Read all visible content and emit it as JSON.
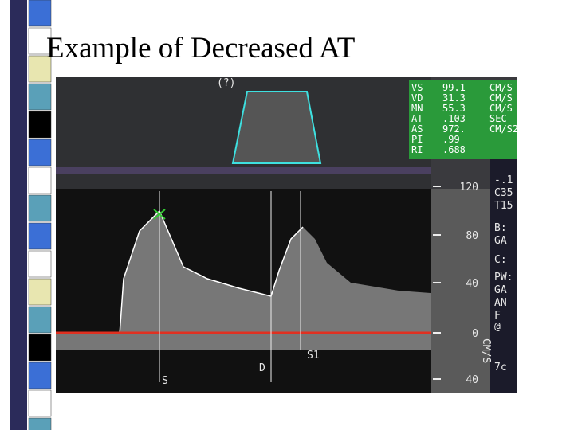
{
  "header": {
    "title": "Example of Decreased AT"
  },
  "image": {
    "top_label": "(?)",
    "measurements": [
      [
        "VS",
        "99.1",
        "CM/S"
      ],
      [
        "VD",
        "31.3",
        "CM/S"
      ],
      [
        "MN",
        "55.3",
        "CM/S"
      ],
      [
        "AT",
        ".103",
        "SEC"
      ],
      [
        "AS",
        "972.",
        "CM/S2"
      ],
      [
        "PI",
        ".99",
        ""
      ],
      [
        "RI",
        ".688",
        ""
      ]
    ],
    "scale_labels": [
      "120",
      "80",
      "40",
      "0",
      "40"
    ],
    "scale_unit": "CM/S",
    "side_panel": [
      "-.1",
      "C35",
      "T15",
      "B:",
      "GA",
      "C:",
      "PW:",
      "GA",
      "AN",
      "F",
      "@",
      "7c"
    ],
    "markers": [
      "S",
      "D",
      "S1"
    ]
  }
}
